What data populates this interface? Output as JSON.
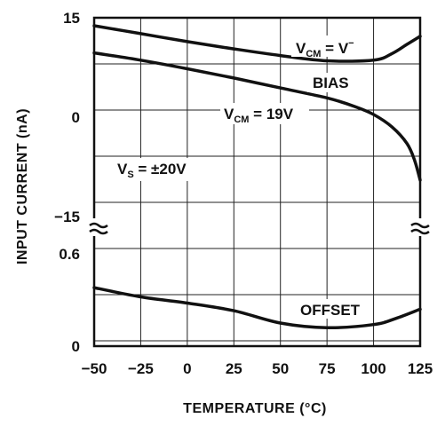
{
  "chart_data": {
    "type": "line",
    "xlabel": "TEMPERATURE (°C)",
    "ylabel": "INPUT CURRENT (nA)",
    "x_ticks": [
      "−50",
      "−25",
      "0",
      "25",
      "50",
      "75",
      "100",
      "125"
    ],
    "x_range": [
      -50,
      125
    ],
    "upper_panel": {
      "y_ticks": [
        "15",
        "0",
        "−15"
      ],
      "y_range": [
        -15,
        15
      ],
      "series": [
        {
          "name": "VCM = V−",
          "x": [
            -50,
            -25,
            0,
            25,
            50,
            75,
            100,
            110,
            118,
            125
          ],
          "y": [
            13.8,
            12.6,
            11.4,
            10.3,
            9.3,
            8.5,
            8.6,
            9.6,
            11.0,
            12.2
          ]
        },
        {
          "name": "VCM = 19V",
          "x": [
            -50,
            -25,
            0,
            25,
            50,
            75,
            90,
            100,
            110,
            118,
            122,
            125
          ],
          "y": [
            9.7,
            8.6,
            7.3,
            5.9,
            4.4,
            2.9,
            1.6,
            0.4,
            -1.5,
            -4.0,
            -6.5,
            -9.5
          ]
        }
      ]
    },
    "lower_panel": {
      "y_ticks": [
        "0.6",
        "0"
      ],
      "y_range": [
        0,
        0.6
      ],
      "series": [
        {
          "name": "OFFSET",
          "x": [
            -50,
            -25,
            0,
            25,
            50,
            75,
            100,
            112,
            125
          ],
          "y": [
            0.38,
            0.32,
            0.28,
            0.23,
            0.15,
            0.12,
            0.14,
            0.18,
            0.24
          ]
        }
      ]
    },
    "annotations": {
      "vcm_minus_main": "V",
      "vcm_minus_sub": "CM",
      "vcm_minus_rest": " = V",
      "vcm_minus_sup": "−",
      "bias": "BIAS",
      "vcm19_main": "V",
      "vcm19_sub": "CM",
      "vcm19_rest": " = 19V",
      "vs_main": "V",
      "vs_sub": "S",
      "vs_rest": " = ±20V",
      "offset": "OFFSET"
    },
    "grid": true
  }
}
